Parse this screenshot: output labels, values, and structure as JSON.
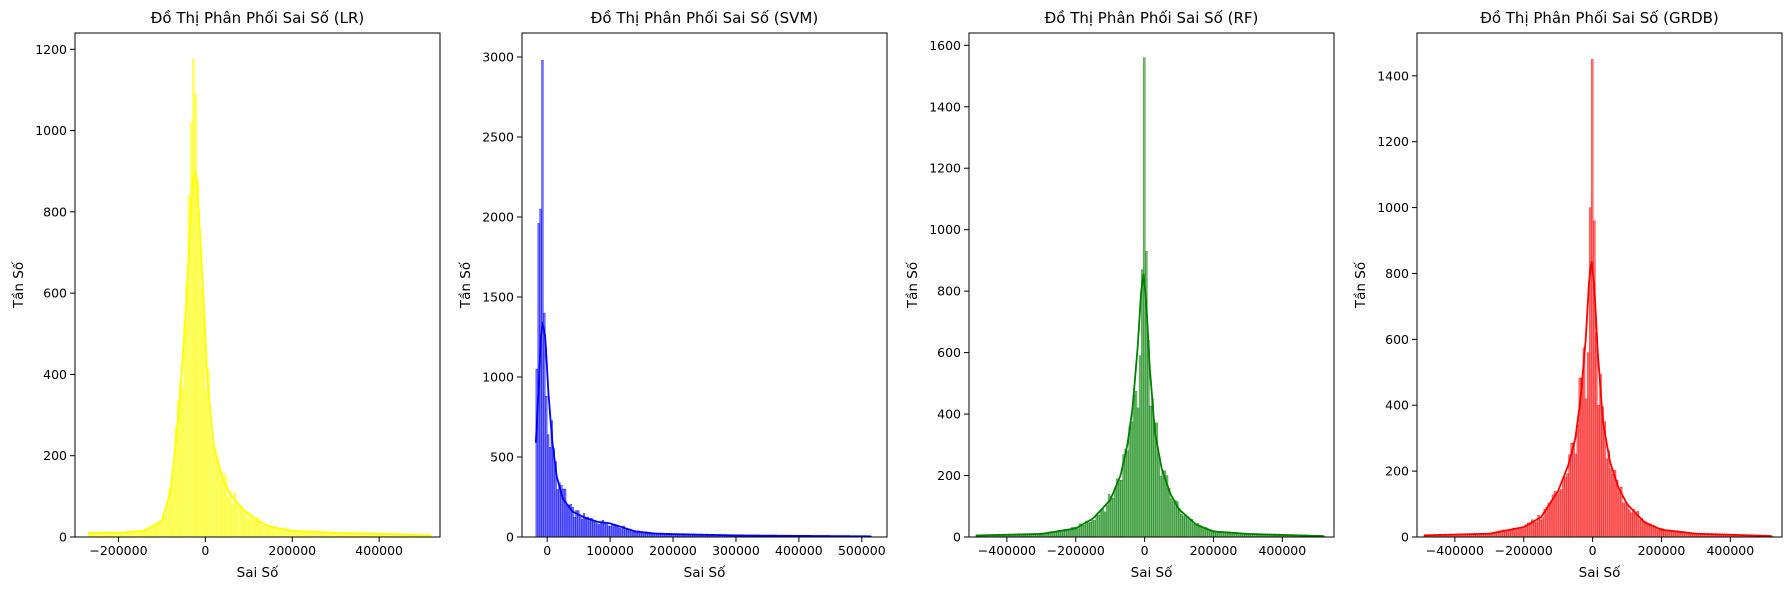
{
  "chart_data": [
    {
      "type": "bar",
      "title": "Đồ Thị Phân Phối Sai Số (LR)",
      "xlabel": "Sai Số",
      "ylabel": "Tần Số",
      "color": "#ffff00",
      "xlim": [
        -300000,
        540000
      ],
      "ylim": [
        0,
        1240
      ],
      "xticks": [
        -200000,
        0,
        200000,
        400000
      ],
      "yticks": [
        0,
        200,
        400,
        600,
        800,
        1000,
        1200
      ],
      "data_range": [
        -270000,
        520000
      ],
      "bin_width": 5000,
      "kde": [
        [
          -270000,
          10
        ],
        [
          -200000,
          10
        ],
        [
          -140000,
          15
        ],
        [
          -100000,
          40
        ],
        [
          -80000,
          110
        ],
        [
          -60000,
          320
        ],
        [
          -45000,
          560
        ],
        [
          -35000,
          760
        ],
        [
          -28000,
          880
        ],
        [
          -22000,
          900
        ],
        [
          -15000,
          800
        ],
        [
          -5000,
          600
        ],
        [
          5000,
          380
        ],
        [
          20000,
          220
        ],
        [
          40000,
          140
        ],
        [
          60000,
          100
        ],
        [
          90000,
          65
        ],
        [
          120000,
          40
        ],
        [
          150000,
          25
        ],
        [
          200000,
          15
        ],
        [
          250000,
          13
        ],
        [
          300000,
          10
        ],
        [
          400000,
          8
        ],
        [
          520000,
          4
        ]
      ],
      "spikes": [
        [
          -28000,
          1175
        ],
        [
          -23000,
          1090
        ],
        [
          -33000,
          1020
        ],
        [
          -18000,
          880
        ],
        [
          -38000,
          840
        ],
        [
          -13000,
          740
        ],
        [
          -43000,
          620
        ]
      ]
    },
    {
      "type": "bar",
      "title": "Đồ Thị Phân Phối Sai Số (SVM)",
      "xlabel": "Sai Số",
      "ylabel": "Tần Số",
      "color": "#0000ff",
      "xlim": [
        -40000,
        540000
      ],
      "ylim": [
        0,
        3150
      ],
      "xticks": [
        0,
        100000,
        200000,
        300000,
        400000,
        500000
      ],
      "yticks": [
        0,
        500,
        1000,
        1500,
        2000,
        2500,
        3000
      ],
      "data_range": [
        -18000,
        515000
      ],
      "bin_width": 3000,
      "kde": [
        [
          -18000,
          590
        ],
        [
          -14000,
          900
        ],
        [
          -10000,
          1250
        ],
        [
          -7000,
          1340
        ],
        [
          -3000,
          1250
        ],
        [
          2000,
          900
        ],
        [
          8000,
          600
        ],
        [
          15000,
          380
        ],
        [
          25000,
          240
        ],
        [
          40000,
          160
        ],
        [
          60000,
          120
        ],
        [
          80000,
          95
        ],
        [
          100000,
          85
        ],
        [
          120000,
          60
        ],
        [
          140000,
          35
        ],
        [
          170000,
          22
        ],
        [
          200000,
          18
        ],
        [
          250000,
          14
        ],
        [
          300000,
          10
        ],
        [
          400000,
          7
        ],
        [
          515000,
          4
        ]
      ],
      "spikes": [
        [
          -7000,
          2980
        ],
        [
          -10000,
          2050
        ],
        [
          -13000,
          1960
        ],
        [
          -4000,
          1400
        ],
        [
          -16000,
          1050
        ],
        [
          -1000,
          880
        ],
        [
          2000,
          640
        ],
        [
          5000,
          560
        ],
        [
          -19000,
          440
        ],
        [
          27000,
          300
        ],
        [
          33000,
          200
        ]
      ]
    },
    {
      "type": "bar",
      "title": "Đồ Thị Phân Phối Sai Số (RF)",
      "xlabel": "Sai Số",
      "ylabel": "Tần Số",
      "color": "#008000",
      "xlim": [
        -510000,
        550000
      ],
      "ylim": [
        0,
        1640
      ],
      "xticks": [
        -400000,
        -200000,
        0,
        200000,
        400000
      ],
      "yticks": [
        0,
        200,
        400,
        600,
        800,
        1000,
        1200,
        1400,
        1600
      ],
      "data_range": [
        -490000,
        520000
      ],
      "bin_width": 6000,
      "kde": [
        [
          -490000,
          5
        ],
        [
          -300000,
          10
        ],
        [
          -200000,
          28
        ],
        [
          -150000,
          60
        ],
        [
          -100000,
          120
        ],
        [
          -70000,
          200
        ],
        [
          -50000,
          300
        ],
        [
          -35000,
          420
        ],
        [
          -20000,
          620
        ],
        [
          -10000,
          800
        ],
        [
          -3000,
          860
        ],
        [
          5000,
          760
        ],
        [
          15000,
          550
        ],
        [
          30000,
          340
        ],
        [
          50000,
          220
        ],
        [
          75000,
          140
        ],
        [
          100000,
          90
        ],
        [
          150000,
          40
        ],
        [
          200000,
          18
        ],
        [
          300000,
          10
        ],
        [
          520000,
          3
        ]
      ],
      "spikes": [
        [
          -3000,
          1560
        ],
        [
          3000,
          930
        ],
        [
          -9000,
          870
        ],
        [
          9000,
          640
        ],
        [
          -15000,
          590
        ],
        [
          -21000,
          420
        ]
      ]
    },
    {
      "type": "bar",
      "title": "Đồ Thị Phân Phối Sai Số (GRDB)",
      "xlabel": "Sai Số",
      "ylabel": "Tần Số",
      "color": "#ff0000",
      "xlim": [
        -510000,
        550000
      ],
      "ylim": [
        0,
        1530
      ],
      "xticks": [
        -400000,
        -200000,
        0,
        200000,
        400000
      ],
      "yticks": [
        0,
        200,
        400,
        600,
        800,
        1000,
        1200,
        1400
      ],
      "data_range": [
        -490000,
        520000
      ],
      "bin_width": 6000,
      "kde": [
        [
          -490000,
          5
        ],
        [
          -300000,
          10
        ],
        [
          -200000,
          30
        ],
        [
          -150000,
          60
        ],
        [
          -100000,
          140
        ],
        [
          -70000,
          220
        ],
        [
          -50000,
          300
        ],
        [
          -35000,
          420
        ],
        [
          -20000,
          600
        ],
        [
          -10000,
          780
        ],
        [
          -3000,
          840
        ],
        [
          5000,
          760
        ],
        [
          15000,
          560
        ],
        [
          30000,
          350
        ],
        [
          50000,
          230
        ],
        [
          75000,
          150
        ],
        [
          100000,
          100
        ],
        [
          150000,
          45
        ],
        [
          200000,
          22
        ],
        [
          300000,
          10
        ],
        [
          520000,
          3
        ]
      ],
      "spikes": [
        [
          -3000,
          1450
        ],
        [
          -9000,
          1000
        ],
        [
          3000,
          960
        ],
        [
          9000,
          620
        ],
        [
          -15000,
          560
        ],
        [
          -21000,
          420
        ],
        [
          15000,
          400
        ]
      ]
    }
  ]
}
